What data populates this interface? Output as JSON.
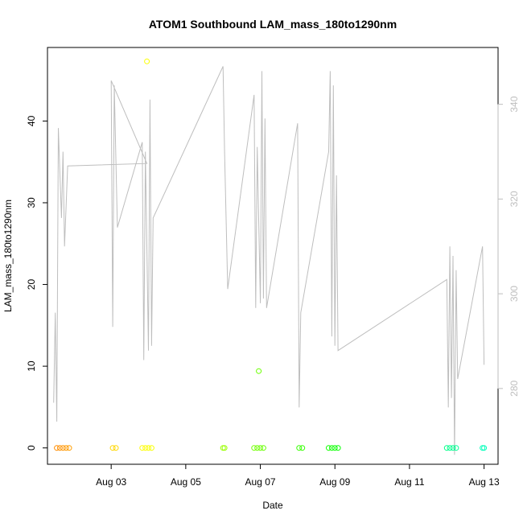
{
  "chart_data": {
    "type": "scatter",
    "title": "ATOM1 Southbound LAM_mass_180to1290nm",
    "xlabel": "Date",
    "ylabel": "LAM_mass_180to1290nm",
    "xlim": [
      "2023-08-01T07:00",
      "2023-08-13T09:00"
    ],
    "ylim": [
      -2,
      49
    ],
    "y2lim": [
      264,
      352
    ],
    "x_ticks": [
      {
        "date": "2023-08-03T00:00",
        "label": "Aug 03"
      },
      {
        "date": "2023-08-05T00:00",
        "label": "Aug 05"
      },
      {
        "date": "2023-08-07T00:00",
        "label": "Aug 07"
      },
      {
        "date": "2023-08-09T00:00",
        "label": "Aug 09"
      },
      {
        "date": "2023-08-11T00:00",
        "label": "Aug 11"
      },
      {
        "date": "2023-08-13T00:00",
        "label": "Aug 13"
      }
    ],
    "y_ticks": [
      0,
      10,
      20,
      30,
      40
    ],
    "y2_ticks": [
      280,
      300,
      320,
      340
    ],
    "grid": false,
    "scatter_color_range": [
      "#ff8000",
      "#00ffcc"
    ],
    "points": [
      [
        "2023-08-01T13:00",
        0
      ],
      [
        "2023-08-01T15:00",
        0
      ],
      [
        "2023-08-01T17:00",
        0
      ],
      [
        "2023-08-01T19:00",
        0
      ],
      [
        "2023-08-01T21:00",
        0
      ],
      [
        "2023-08-03T01:00",
        0
      ],
      [
        "2023-08-03T03:00",
        0
      ],
      [
        "2023-08-03T20:00",
        0
      ],
      [
        "2023-08-03T22:00",
        0
      ],
      [
        "2023-08-04T00:00",
        0
      ],
      [
        "2023-08-04T02:00",
        0
      ],
      [
        "2023-08-03T23:00",
        47.3
      ],
      [
        "2023-08-06T00:00",
        0
      ],
      [
        "2023-08-06T01:00",
        0
      ],
      [
        "2023-08-06T20:00",
        0
      ],
      [
        "2023-08-06T22:00",
        0
      ],
      [
        "2023-08-07T00:00",
        0
      ],
      [
        "2023-08-07T02:00",
        0
      ],
      [
        "2023-08-06T23:00",
        9.4
      ],
      [
        "2023-08-08T01:00",
        0
      ],
      [
        "2023-08-08T03:00",
        0
      ],
      [
        "2023-08-08T20:00",
        0
      ],
      [
        "2023-08-08T22:00",
        0
      ],
      [
        "2023-08-09T00:00",
        0
      ],
      [
        "2023-08-09T02:00",
        0
      ],
      [
        "2023-08-12T00:00",
        0
      ],
      [
        "2023-08-12T02:00",
        0
      ],
      [
        "2023-08-12T04:00",
        0
      ],
      [
        "2023-08-12T06:00",
        0
      ],
      [
        "2023-08-12T23:00",
        0
      ],
      [
        "2023-08-13T00:00",
        0
      ]
    ],
    "line_series_right_axis": [
      [
        "2023-08-01T11:00",
        277
      ],
      [
        "2023-08-01T12:00",
        296
      ],
      [
        "2023-08-01T13:00",
        273
      ],
      [
        "2023-08-01T14:00",
        335
      ],
      [
        "2023-08-01T16:00",
        316
      ],
      [
        "2023-08-01T17:00",
        330
      ],
      [
        "2023-08-01T18:00",
        310
      ],
      [
        "2023-08-01T20:00",
        327
      ],
      [
        "2023-08-03T23:00",
        327.5
      ],
      [
        "2023-08-03T00:00",
        345
      ],
      [
        "2023-08-03T01:00",
        293
      ],
      [
        "2023-08-03T02:00",
        344
      ],
      [
        "2023-08-03T04:00",
        314
      ],
      [
        "2023-08-03T20:00",
        332
      ],
      [
        "2023-08-03T21:00",
        286
      ],
      [
        "2023-08-03T22:00",
        330
      ],
      [
        "2023-08-04T00:00",
        288
      ],
      [
        "2023-08-04T01:00",
        341
      ],
      [
        "2023-08-04T02:00",
        289
      ],
      [
        "2023-08-04T03:00",
        316
      ],
      [
        "2023-08-06T00:00",
        348
      ],
      [
        "2023-08-06T01:00",
        330
      ],
      [
        "2023-08-06T03:00",
        301
      ],
      [
        "2023-08-06T20:00",
        342
      ],
      [
        "2023-08-06T21:00",
        297
      ],
      [
        "2023-08-06T22:00",
        331
      ],
      [
        "2023-08-07T00:00",
        298
      ],
      [
        "2023-08-07T01:00",
        347
      ],
      [
        "2023-08-07T02:00",
        299
      ],
      [
        "2023-08-07T03:00",
        337
      ],
      [
        "2023-08-07T04:00",
        297
      ],
      [
        "2023-08-08T00:00",
        336
      ],
      [
        "2023-08-08T01:00",
        276
      ],
      [
        "2023-08-08T02:00",
        296
      ],
      [
        "2023-08-08T20:00",
        330
      ],
      [
        "2023-08-08T21:00",
        347
      ],
      [
        "2023-08-08T22:00",
        291
      ],
      [
        "2023-08-08T23:00",
        344
      ],
      [
        "2023-08-09T00:00",
        289
      ],
      [
        "2023-08-09T01:00",
        325
      ],
      [
        "2023-08-09T02:00",
        288
      ],
      [
        "2023-08-12T00:00",
        303
      ],
      [
        "2023-08-12T01:00",
        276
      ],
      [
        "2023-08-12T02:00",
        310
      ],
      [
        "2023-08-12T03:00",
        278
      ],
      [
        "2023-08-12T04:00",
        308
      ],
      [
        "2023-08-12T05:00",
        266
      ],
      [
        "2023-08-12T06:00",
        305
      ],
      [
        "2023-08-12T07:00",
        282
      ],
      [
        "2023-08-12T23:00",
        310
      ],
      [
        "2023-08-13T00:00",
        285
      ]
    ]
  }
}
